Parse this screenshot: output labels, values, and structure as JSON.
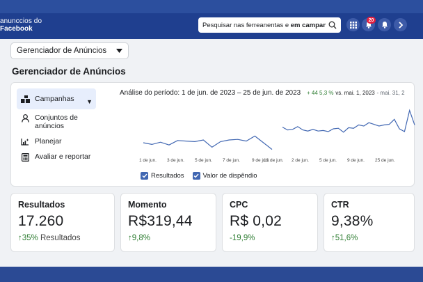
{
  "brand": {
    "line1": "anunccios do",
    "line2": "Facebook"
  },
  "search": {
    "text": "Pesquisar nas ferreanentas e",
    "bold": "em campanhas"
  },
  "header": {
    "notifications_count": "20"
  },
  "manager_select": {
    "value": "Gerenciador de Anúncios"
  },
  "page_title": "Gerenciador de Anúncios",
  "nav": {
    "items": [
      {
        "label": "Campanhas",
        "icon": "campaigns-icon"
      },
      {
        "label": "Conjuntos de anúncios",
        "icon": "person-icon"
      },
      {
        "label": "Planejar",
        "icon": "chart-sparkle-icon"
      },
      {
        "label": "Avaliar e reportar",
        "icon": "calculator-icon"
      }
    ]
  },
  "period": {
    "label": "Análise do período:",
    "range": "1 de jun. de 2023 – 25 de jun. de 2023",
    "change": "+ 44 5,3 %",
    "vs": "vs. mai. 1, 2023",
    "compare": "- mai. 31, 2"
  },
  "chart_data": {
    "type": "line",
    "x_labels": [
      "1 de jun.",
      "3 de jun.",
      "5 de jun.",
      "7 de jun.",
      "9 de jun.",
      "13 de jun.",
      "2 de jun.",
      "5 de jun.",
      "9 de jun.",
      "25 de jun."
    ],
    "series": [
      {
        "name": "Resultados",
        "values": [
          30,
          27,
          31,
          26,
          34,
          33,
          32,
          35,
          22,
          32,
          35,
          36,
          33,
          42,
          30,
          18
        ]
      },
      {
        "name": "Valor de dispêndio",
        "values": [
          58,
          53,
          54,
          59,
          53,
          51,
          54,
          51,
          52,
          50,
          55,
          56,
          49,
          57,
          56,
          62,
          60,
          66,
          63,
          60,
          62,
          63,
          72,
          55,
          50,
          88,
          62
        ]
      }
    ],
    "legend": [
      "Resultados",
      "Valor de dispêndio"
    ]
  },
  "kpis": [
    {
      "name": "Resultados",
      "value": "17.260",
      "arrow": "↑",
      "change": "35%",
      "suffix": "Resultados"
    },
    {
      "name": "Momento",
      "value": "R$319,44",
      "arrow": "↑",
      "change": "9,8%",
      "suffix": ""
    },
    {
      "name": "CPC",
      "value": "R$ 0,02",
      "arrow": "",
      "change": "-19,9%",
      "suffix": ""
    },
    {
      "name": "CTR",
      "value": "9,38%",
      "arrow": "↑",
      "change": "51,6%",
      "suffix": ""
    }
  ],
  "colors": {
    "brand_blue": "#1f3f8f",
    "line_blue": "#4167b2",
    "positive": "#2e7d32"
  }
}
